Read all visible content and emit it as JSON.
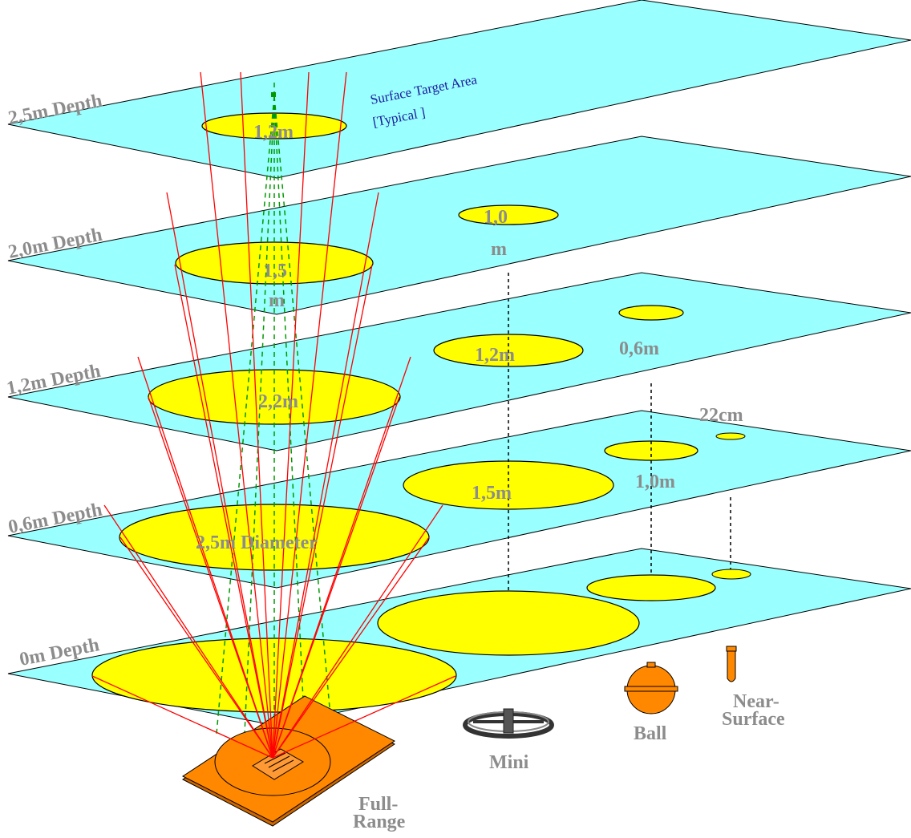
{
  "levels": [
    {
      "depth_label": "2,5m Depth",
      "circle_labels": [
        "1,2m"
      ]
    },
    {
      "depth_label": "2,0m Depth",
      "circle_labels": [
        "1,5",
        "m",
        "1,0",
        "m"
      ]
    },
    {
      "depth_label": "1,2m Depth",
      "circle_labels": [
        "2,2m",
        "1,2m",
        "0,6m"
      ]
    },
    {
      "depth_label": "0,6m Depth",
      "circle_labels": [
        "2,5m Diameter",
        "1,5m",
        "1,0m",
        "22cm"
      ]
    },
    {
      "depth_label": "0m Depth",
      "circle_labels": []
    }
  ],
  "annotation": {
    "line1": "Surface Target Area",
    "line2": "[Typical ]"
  },
  "detectors": {
    "full_range": {
      "line1": "Full-",
      "line2": "Range"
    },
    "mini": "Mini",
    "ball": "Ball",
    "near_surface": {
      "line1": "Near-",
      "line2": "Surface"
    }
  },
  "colors": {
    "plane": "#99ffff",
    "target": "#ffff00",
    "beam": "#ff0000",
    "dashed_cone": "#009900",
    "detector": "#ff8800",
    "label": "#8c8c8c",
    "note": "#1a1a9c"
  }
}
